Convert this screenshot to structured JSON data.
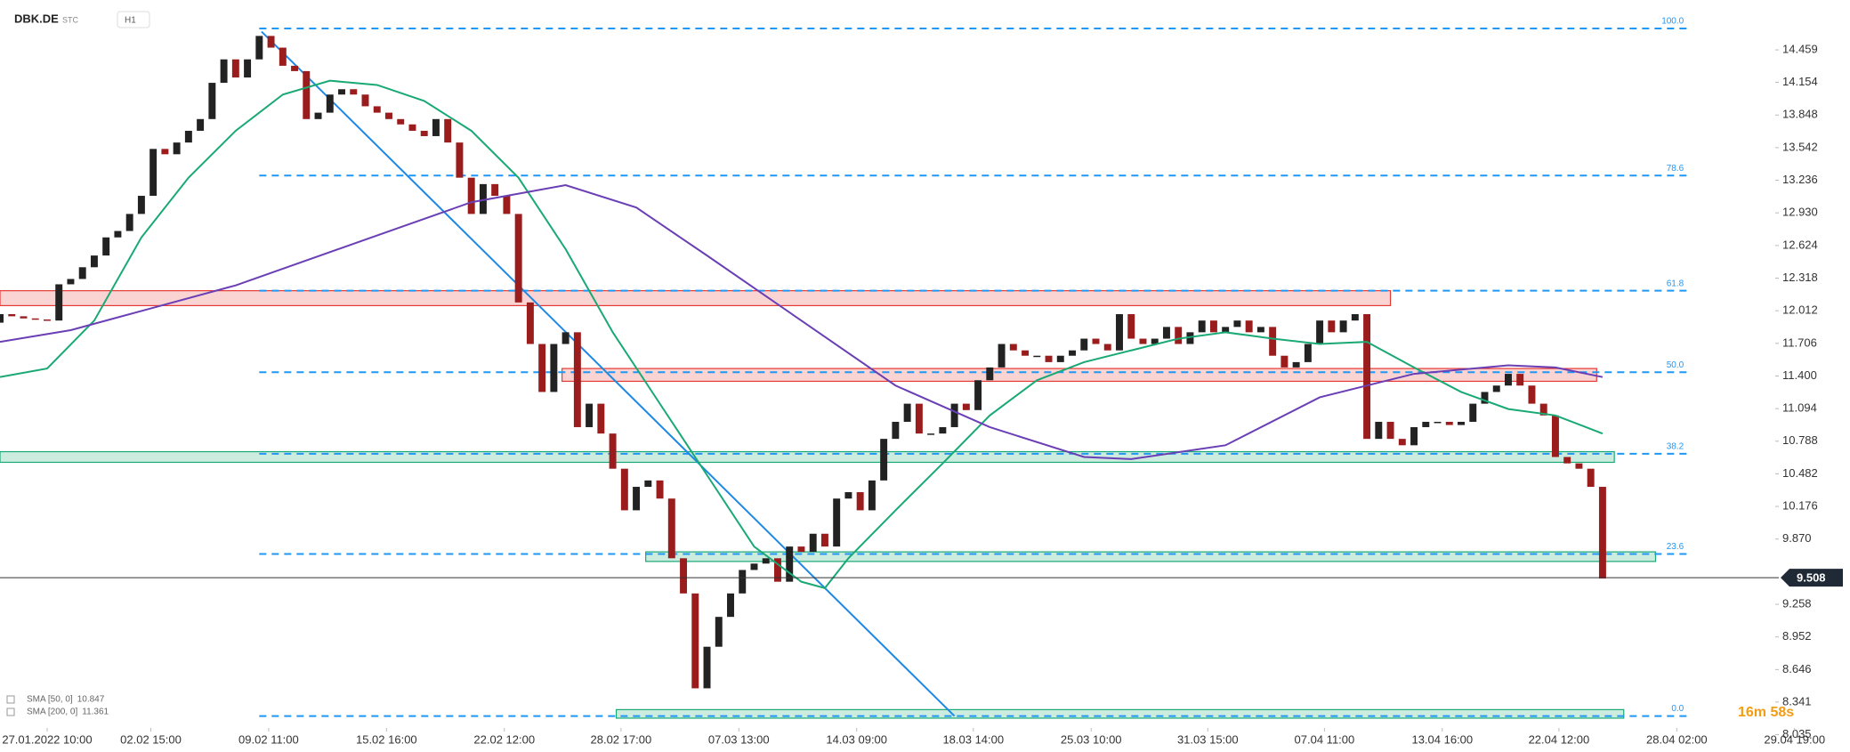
{
  "chart_data": {
    "type": "candlestick",
    "title": "DBK.DE",
    "subtitle": "STC",
    "timeframe": "H1",
    "xlim": [
      0,
      157
    ],
    "xticks": [
      {
        "value": 4,
        "label": "27.01.2022 10:00"
      },
      {
        "value": 12.8,
        "label": "02.02 15:00"
      },
      {
        "value": 22.8,
        "label": "09.02 11:00"
      },
      {
        "value": 32.8,
        "label": "15.02 16:00"
      },
      {
        "value": 42.8,
        "label": "22.02 12:00"
      },
      {
        "value": 52.7,
        "label": "28.02 17:00"
      },
      {
        "value": 62.7,
        "label": "07.03 13:00"
      },
      {
        "value": 72.7,
        "label": "14.03 09:00"
      },
      {
        "value": 82.6,
        "label": "18.03 14:00"
      },
      {
        "value": 92.6,
        "label": "25.03 10:00"
      },
      {
        "value": 102.5,
        "label": "31.03 15:00"
      },
      {
        "value": 112.4,
        "label": "07.04 11:00"
      },
      {
        "value": 122.4,
        "label": "13.04 16:00"
      },
      {
        "value": 132.3,
        "label": "22.04 12:00"
      },
      {
        "value": 142.3,
        "label": "28.04 02:00"
      },
      {
        "value": 152.3,
        "label": "29.04 19:00"
      }
    ],
    "ylim": [
      7.956,
      14.927
    ],
    "yticks": [
      14.459,
      14.154,
      13.848,
      13.542,
      13.236,
      {
        "value": 12.93,
        "label": "12.930"
      },
      12.624,
      12.318,
      12.012,
      11.706,
      {
        "value": 11.4,
        "label": "11.400"
      },
      11.094,
      10.788,
      10.482,
      10.176,
      {
        "value": 9.87,
        "label": "9.870"
      },
      9.258,
      8.952,
      8.646,
      8.341,
      8.035
    ],
    "candles": {
      "up_color": "#222222",
      "down_color": "#9b1c1c",
      "x": [
        0,
        1,
        2,
        3,
        4,
        5,
        6,
        7,
        8,
        9,
        10,
        11,
        12,
        13,
        14,
        15,
        16,
        17,
        18,
        19,
        20,
        21,
        22,
        23,
        24,
        25,
        26,
        27,
        28,
        29,
        30,
        31,
        32,
        33,
        34,
        35,
        36,
        37,
        38,
        39,
        40,
        41,
        42,
        43,
        44,
        45,
        46,
        47,
        48,
        49,
        50,
        51,
        52,
        53,
        54,
        55,
        56,
        57,
        58,
        59,
        60,
        61,
        62,
        63,
        64,
        65,
        66,
        67,
        68,
        69,
        70,
        71,
        72,
        73,
        74,
        75,
        76,
        77,
        78,
        79,
        80,
        81,
        82,
        83,
        84,
        85,
        86,
        87,
        88,
        89,
        90,
        91,
        92,
        93,
        94,
        95,
        96,
        97,
        98,
        99,
        100,
        101,
        102,
        103,
        104,
        105,
        106,
        107,
        108,
        109,
        110,
        111,
        112,
        113,
        114,
        115,
        116,
        117,
        118,
        119,
        120,
        121,
        122,
        123,
        124,
        125,
        126,
        127,
        128,
        129,
        130,
        131,
        132,
        133,
        134,
        135,
        136
      ],
      "open": [
        11.9,
        11.98,
        11.96,
        11.94,
        11.93,
        11.92,
        12.26,
        12.31,
        12.42,
        12.53,
        12.7,
        12.76,
        12.92,
        13.09,
        13.53,
        13.48,
        13.59,
        13.7,
        13.81,
        14.15,
        14.37,
        14.2,
        14.37,
        14.59,
        14.48,
        14.31,
        14.26,
        13.81,
        13.87,
        14.04,
        14.09,
        14.04,
        13.93,
        13.87,
        13.81,
        13.76,
        13.7,
        13.65,
        13.81,
        13.59,
        13.26,
        12.92,
        13.2,
        13.09,
        12.92,
        12.09,
        11.7,
        11.25,
        11.7,
        11.81,
        10.92,
        11.14,
        10.86,
        10.53,
        10.14,
        10.36,
        10.42,
        10.25,
        9.69,
        9.36,
        8.47,
        8.86,
        9.14,
        9.36,
        9.58,
        9.64,
        9.69,
        9.47,
        9.8,
        9.75,
        9.92,
        9.8,
        10.25,
        10.31,
        10.14,
        10.42,
        10.81,
        10.97,
        11.14,
        10.86,
        10.86,
        10.92,
        11.14,
        11.08,
        11.36,
        11.48,
        11.7,
        11.64,
        11.59,
        11.59,
        11.53,
        11.59,
        11.64,
        11.75,
        11.7,
        11.64,
        11.98,
        11.75,
        11.7,
        11.75,
        11.86,
        11.7,
        11.81,
        11.92,
        11.81,
        11.86,
        11.92,
        11.81,
        11.86,
        11.59,
        11.48,
        11.53,
        11.7,
        11.92,
        11.81,
        11.92,
        11.98,
        10.81,
        10.97,
        10.81,
        10.75,
        10.92,
        10.97,
        10.97,
        10.94,
        10.97,
        11.14,
        11.25,
        11.31,
        11.42,
        11.31,
        11.14,
        11.03,
        10.64,
        10.58,
        10.53,
        10.36
      ],
      "close": [
        11.98,
        11.96,
        11.94,
        11.93,
        11.92,
        12.26,
        12.31,
        12.42,
        12.53,
        12.7,
        12.76,
        12.92,
        13.09,
        13.53,
        13.48,
        13.59,
        13.7,
        13.81,
        14.15,
        14.37,
        14.2,
        14.37,
        14.59,
        14.48,
        14.31,
        14.26,
        13.81,
        13.87,
        14.04,
        14.09,
        14.04,
        13.93,
        13.87,
        13.81,
        13.76,
        13.7,
        13.65,
        13.81,
        13.59,
        13.26,
        12.92,
        13.2,
        13.09,
        12.92,
        12.09,
        11.7,
        11.25,
        11.7,
        11.81,
        10.92,
        11.14,
        10.86,
        10.53,
        10.14,
        10.36,
        10.42,
        10.25,
        9.69,
        9.36,
        8.47,
        8.86,
        9.14,
        9.36,
        9.58,
        9.64,
        9.69,
        9.47,
        9.8,
        9.75,
        9.92,
        9.8,
        10.25,
        10.31,
        10.14,
        10.42,
        10.81,
        10.97,
        11.14,
        10.86,
        10.86,
        10.92,
        11.14,
        11.08,
        11.36,
        11.48,
        11.7,
        11.64,
        11.59,
        11.59,
        11.53,
        11.59,
        11.64,
        11.75,
        11.7,
        11.64,
        11.98,
        11.75,
        11.7,
        11.75,
        11.86,
        11.7,
        11.81,
        11.92,
        11.81,
        11.86,
        11.92,
        11.81,
        11.86,
        11.59,
        11.48,
        11.53,
        11.7,
        11.92,
        11.81,
        11.92,
        11.98,
        10.81,
        10.97,
        10.81,
        10.75,
        10.92,
        10.97,
        10.97,
        10.94,
        10.97,
        11.14,
        11.25,
        11.31,
        11.42,
        11.31,
        11.14,
        11.03,
        10.64,
        10.58,
        10.53,
        10.36,
        9.5
      ]
    },
    "series": [
      {
        "name": "SMA [50, 0]",
        "last_value": 10.847,
        "color": "#19a974",
        "x": [
          0,
          4,
          8,
          12,
          16,
          20,
          24,
          28,
          32,
          36,
          40,
          44,
          48,
          52,
          56,
          60,
          64,
          68,
          70,
          72,
          76,
          80,
          84,
          88,
          92,
          96,
          100,
          104,
          108,
          112,
          116,
          120,
          124,
          128,
          132,
          136
        ],
        "values": [
          11.39,
          11.47,
          11.92,
          12.7,
          13.26,
          13.7,
          14.04,
          14.17,
          14.13,
          13.98,
          13.7,
          13.26,
          12.59,
          11.81,
          11.14,
          10.47,
          9.8,
          9.47,
          9.41,
          9.69,
          10.14,
          10.58,
          11.03,
          11.36,
          11.53,
          11.64,
          11.75,
          11.81,
          11.75,
          11.7,
          11.72,
          11.48,
          11.25,
          11.09,
          11.03,
          10.86
        ]
      },
      {
        "name": "SMA [200, 0]",
        "last_value": 11.361,
        "color": "#6a3fb5",
        "x": [
          0,
          6,
          12,
          20,
          30,
          40,
          48,
          54,
          60,
          68,
          76,
          84,
          92,
          96,
          104,
          112,
          120,
          128,
          132,
          136
        ],
        "values": [
          11.72,
          11.83,
          12.01,
          12.25,
          12.64,
          13.03,
          13.19,
          12.98,
          12.53,
          11.92,
          11.31,
          10.92,
          10.64,
          10.62,
          10.75,
          11.2,
          11.42,
          11.5,
          11.48,
          11.39
        ]
      }
    ],
    "fib_levels": {
      "color": "#2196f3",
      "x": [
        22,
        143.5
      ],
      "levels": [
        {
          "label": "100.0",
          "value": 14.66
        },
        {
          "label": "78.6",
          "value": 13.28
        },
        {
          "label": "61.8",
          "value": 12.2
        },
        {
          "label": "50.0",
          "value": 11.435
        },
        {
          "label": "38.2",
          "value": 10.67
        },
        {
          "label": "23.6",
          "value": 9.73
        },
        {
          "label": "0.0",
          "value": 8.21
        }
      ]
    },
    "zones": [
      {
        "x": [
          0,
          118
        ],
        "y": [
          12.06,
          12.2
        ],
        "color": "#e53935"
      },
      {
        "x": [
          47.7,
          135.5
        ],
        "y": [
          11.35,
          11.47
        ],
        "color": "#e53935"
      },
      {
        "x": [
          0,
          137
        ],
        "y": [
          10.59,
          10.69
        ],
        "color": "#19a974"
      },
      {
        "x": [
          54.8,
          140.5
        ],
        "y": [
          9.66,
          9.75
        ],
        "color": "#19a974"
      },
      {
        "x": [
          52.3,
          137.8
        ],
        "y": [
          8.19,
          8.27
        ],
        "color": "#19a974"
      }
    ],
    "trendline": {
      "x": [
        22.2,
        81
      ],
      "y": [
        14.63,
        8.21
      ],
      "color": "#1e88e5"
    },
    "last_price": 9.508,
    "timer": "16m 58s"
  }
}
